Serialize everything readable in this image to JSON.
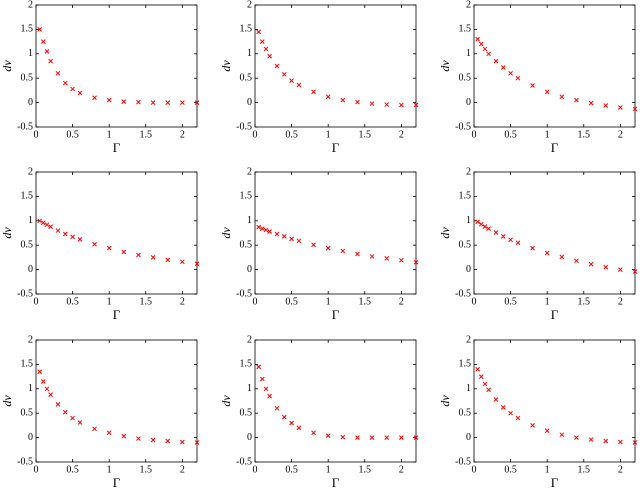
{
  "chart_data": [
    {
      "type": "scatter",
      "xlabel": "Γ",
      "ylabel": "dv",
      "color": "#ff0000",
      "xlim": [
        0,
        2.2
      ],
      "ylim": [
        -0.5,
        2
      ],
      "xticks": [
        0,
        0.5,
        1,
        1.5,
        2
      ],
      "yticks": [
        -0.5,
        0,
        0.5,
        1,
        1.5,
        2
      ],
      "x": [
        0.05,
        0.1,
        0.15,
        0.2,
        0.3,
        0.4,
        0.5,
        0.6,
        0.8,
        1.0,
        1.2,
        1.4,
        1.6,
        1.8,
        2.0,
        2.2
      ],
      "y": [
        1.5,
        1.25,
        1.05,
        0.85,
        0.6,
        0.4,
        0.28,
        0.2,
        0.1,
        0.05,
        0.02,
        0.01,
        0,
        0,
        0,
        0
      ]
    },
    {
      "type": "scatter",
      "xlabel": "Γ",
      "ylabel": "dv",
      "color": "#ff0000",
      "xlim": [
        0,
        2.2
      ],
      "ylim": [
        -0.5,
        2
      ],
      "xticks": [
        0,
        0.5,
        1,
        1.5,
        2
      ],
      "yticks": [
        -0.5,
        0,
        0.5,
        1,
        1.5,
        2
      ],
      "x": [
        0.05,
        0.1,
        0.15,
        0.2,
        0.3,
        0.4,
        0.5,
        0.6,
        0.8,
        1.0,
        1.2,
        1.4,
        1.6,
        1.8,
        2.0,
        2.2
      ],
      "y": [
        1.45,
        1.25,
        1.1,
        0.95,
        0.75,
        0.58,
        0.45,
        0.36,
        0.22,
        0.12,
        0.05,
        0.01,
        -0.02,
        -0.04,
        -0.05,
        -0.05
      ]
    },
    {
      "type": "scatter",
      "xlabel": "Γ",
      "ylabel": "dv",
      "color": "#ff0000",
      "xlim": [
        0,
        2.2
      ],
      "ylim": [
        -0.5,
        2
      ],
      "xticks": [
        0,
        0.5,
        1,
        1.5,
        2
      ],
      "yticks": [
        -0.5,
        0,
        0.5,
        1,
        1.5,
        2
      ],
      "x": [
        0.05,
        0.1,
        0.15,
        0.2,
        0.3,
        0.4,
        0.5,
        0.6,
        0.8,
        1.0,
        1.2,
        1.4,
        1.6,
        1.8,
        2.0,
        2.2
      ],
      "y": [
        1.3,
        1.2,
        1.1,
        1.0,
        0.85,
        0.72,
        0.6,
        0.5,
        0.35,
        0.22,
        0.12,
        0.05,
        -0.01,
        -0.06,
        -0.1,
        -0.13
      ]
    },
    {
      "type": "scatter",
      "xlabel": "Γ",
      "ylabel": "dv",
      "color": "#ff0000",
      "xlim": [
        0,
        2.2
      ],
      "ylim": [
        -0.5,
        2
      ],
      "xticks": [
        0,
        0.5,
        1,
        1.5,
        2
      ],
      "yticks": [
        -0.5,
        0,
        0.5,
        1,
        1.5,
        2
      ],
      "x": [
        0.05,
        0.1,
        0.15,
        0.2,
        0.3,
        0.4,
        0.5,
        0.6,
        0.8,
        1.0,
        1.2,
        1.4,
        1.6,
        1.8,
        2.0,
        2.2
      ],
      "y": [
        1.0,
        0.96,
        0.92,
        0.88,
        0.8,
        0.73,
        0.67,
        0.62,
        0.52,
        0.44,
        0.36,
        0.3,
        0.25,
        0.2,
        0.16,
        0.12
      ]
    },
    {
      "type": "scatter",
      "xlabel": "Γ",
      "ylabel": "dv",
      "color": "#ff0000",
      "xlim": [
        0,
        2.2
      ],
      "ylim": [
        -0.5,
        2
      ],
      "xticks": [
        0,
        0.5,
        1,
        1.5,
        2
      ],
      "yticks": [
        -0.5,
        0,
        0.5,
        1,
        1.5,
        2
      ],
      "x": [
        0.05,
        0.1,
        0.15,
        0.2,
        0.3,
        0.4,
        0.5,
        0.6,
        0.8,
        1.0,
        1.2,
        1.4,
        1.6,
        1.8,
        2.0,
        2.2
      ],
      "y": [
        0.87,
        0.84,
        0.81,
        0.78,
        0.73,
        0.68,
        0.63,
        0.59,
        0.51,
        0.44,
        0.38,
        0.32,
        0.27,
        0.23,
        0.19,
        0.15
      ]
    },
    {
      "type": "scatter",
      "xlabel": "Γ",
      "ylabel": "dv",
      "color": "#ff0000",
      "xlim": [
        0,
        2.2
      ],
      "ylim": [
        -0.5,
        2
      ],
      "xticks": [
        0,
        0.5,
        1,
        1.5,
        2
      ],
      "yticks": [
        -0.5,
        0,
        0.5,
        1,
        1.5,
        2
      ],
      "x": [
        0.05,
        0.1,
        0.15,
        0.2,
        0.3,
        0.4,
        0.5,
        0.6,
        0.8,
        1.0,
        1.2,
        1.4,
        1.6,
        1.8,
        2.0,
        2.2
      ],
      "y": [
        0.98,
        0.93,
        0.88,
        0.84,
        0.76,
        0.68,
        0.61,
        0.55,
        0.44,
        0.34,
        0.26,
        0.18,
        0.11,
        0.05,
        0.0,
        -0.04
      ]
    },
    {
      "type": "scatter",
      "xlabel": "Γ",
      "ylabel": "dv",
      "color": "#ff0000",
      "xlim": [
        0,
        2.2
      ],
      "ylim": [
        -0.5,
        2
      ],
      "xticks": [
        0,
        0.5,
        1,
        1.5,
        2
      ],
      "yticks": [
        -0.5,
        0,
        0.5,
        1,
        1.5,
        2
      ],
      "x": [
        0.05,
        0.1,
        0.15,
        0.2,
        0.3,
        0.4,
        0.5,
        0.6,
        0.8,
        1.0,
        1.2,
        1.4,
        1.6,
        1.8,
        2.0,
        2.2
      ],
      "y": [
        1.35,
        1.15,
        1.0,
        0.88,
        0.68,
        0.52,
        0.4,
        0.31,
        0.18,
        0.1,
        0.03,
        -0.02,
        -0.05,
        -0.07,
        -0.09,
        -0.1
      ]
    },
    {
      "type": "scatter",
      "xlabel": "Γ",
      "ylabel": "dv",
      "color": "#ff0000",
      "xlim": [
        0,
        2.2
      ],
      "ylim": [
        -0.5,
        2
      ],
      "xticks": [
        0,
        0.5,
        1,
        1.5,
        2
      ],
      "yticks": [
        -0.5,
        0,
        0.5,
        1,
        1.5,
        2
      ],
      "x": [
        0.05,
        0.1,
        0.15,
        0.2,
        0.3,
        0.4,
        0.5,
        0.6,
        0.8,
        1.0,
        1.2,
        1.4,
        1.6,
        1.8,
        2.0,
        2.2
      ],
      "y": [
        1.45,
        1.2,
        1.0,
        0.85,
        0.6,
        0.42,
        0.3,
        0.2,
        0.1,
        0.04,
        0.01,
        0,
        0,
        0,
        0,
        0
      ]
    },
    {
      "type": "scatter",
      "xlabel": "Γ",
      "ylabel": "dv",
      "color": "#ff0000",
      "xlim": [
        0,
        2.2
      ],
      "ylim": [
        -0.5,
        2
      ],
      "xticks": [
        0,
        0.5,
        1,
        1.5,
        2
      ],
      "yticks": [
        -0.5,
        0,
        0.5,
        1,
        1.5,
        2
      ],
      "x": [
        0.05,
        0.1,
        0.15,
        0.2,
        0.3,
        0.4,
        0.5,
        0.6,
        0.8,
        1.0,
        1.2,
        1.4,
        1.6,
        1.8,
        2.0,
        2.2
      ],
      "y": [
        1.4,
        1.25,
        1.1,
        0.98,
        0.78,
        0.62,
        0.5,
        0.4,
        0.25,
        0.14,
        0.06,
        0.0,
        -0.04,
        -0.07,
        -0.09,
        -0.1
      ]
    }
  ]
}
